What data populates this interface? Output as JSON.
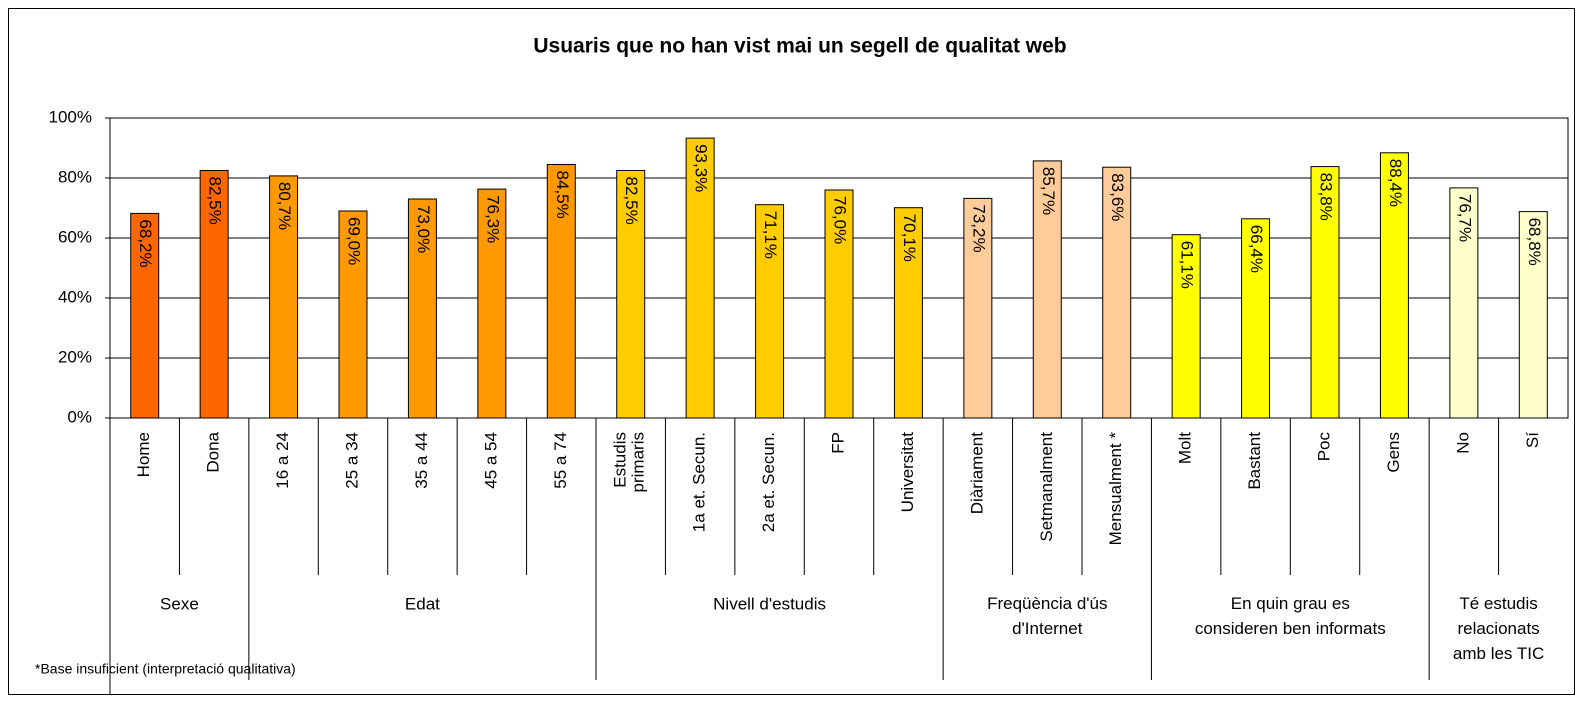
{
  "chart_data": {
    "type": "bar",
    "title": "Usuaris que no han vist mai un segell de qualitat web",
    "ylim": [
      0,
      100
    ],
    "yticks": [
      {
        "value": 0,
        "label": "0%"
      },
      {
        "value": 20,
        "label": "20%"
      },
      {
        "value": 40,
        "label": "40%"
      },
      {
        "value": 60,
        "label": "60%"
      },
      {
        "value": 80,
        "label": "80%"
      },
      {
        "value": 100,
        "label": "100%"
      }
    ],
    "grid": true,
    "footnote": "*Base insuficient (interpretació qualitativa)",
    "groups": [
      {
        "name": "Sexe",
        "color": "#ff6600",
        "categories": [
          "Home",
          "Dona"
        ],
        "values": [
          68.2,
          82.5
        ],
        "value_labels": [
          "68,2%",
          "82,5%"
        ]
      },
      {
        "name": "Edat",
        "color": "#ff9900",
        "categories": [
          "16 a 24",
          "25 a 34",
          "35 a 44",
          "45 a 54",
          "55 a 74"
        ],
        "values": [
          80.7,
          69.0,
          73.0,
          76.3,
          84.5
        ],
        "value_labels": [
          "80,7%",
          "69,0%",
          "73,0%",
          "76,3%",
          "84,5%"
        ]
      },
      {
        "name": "Nivell d'estudis",
        "color": "#ffcc00",
        "categories": [
          "Estudis\nprimaris",
          "1a et. Secun.",
          "2a et. Secun.",
          "FP",
          "Universitat"
        ],
        "values": [
          82.5,
          93.3,
          71.1,
          76.0,
          70.1
        ],
        "value_labels": [
          "82,5%",
          "93,3%",
          "71,1%",
          "76,0%",
          "70,1%"
        ]
      },
      {
        "name": "Freqüència d'ús\nd'Internet",
        "color": "#ffcc99",
        "categories": [
          "Diàriament",
          "Setmanalment",
          "Mensualment *"
        ],
        "values": [
          73.2,
          85.7,
          83.6
        ],
        "value_labels": [
          "73,2%",
          "85,7%",
          "83,6%"
        ]
      },
      {
        "name": "En quin grau es\nconsideren ben informats",
        "color": "#ffff00",
        "categories": [
          "Molt",
          "Bastant",
          "Poc",
          "Gens"
        ],
        "values": [
          61.1,
          66.4,
          83.8,
          88.4
        ],
        "value_labels": [
          "61,1%",
          "66,4%",
          "83,8%",
          "88,4%"
        ]
      },
      {
        "name": "Té estudis\nrelacionats\namb les TIC",
        "color": "#ffffcc",
        "categories": [
          "No",
          "Sí"
        ],
        "values": [
          76.7,
          68.8
        ],
        "value_labels": [
          "76,7%",
          "68,8%"
        ]
      }
    ]
  }
}
